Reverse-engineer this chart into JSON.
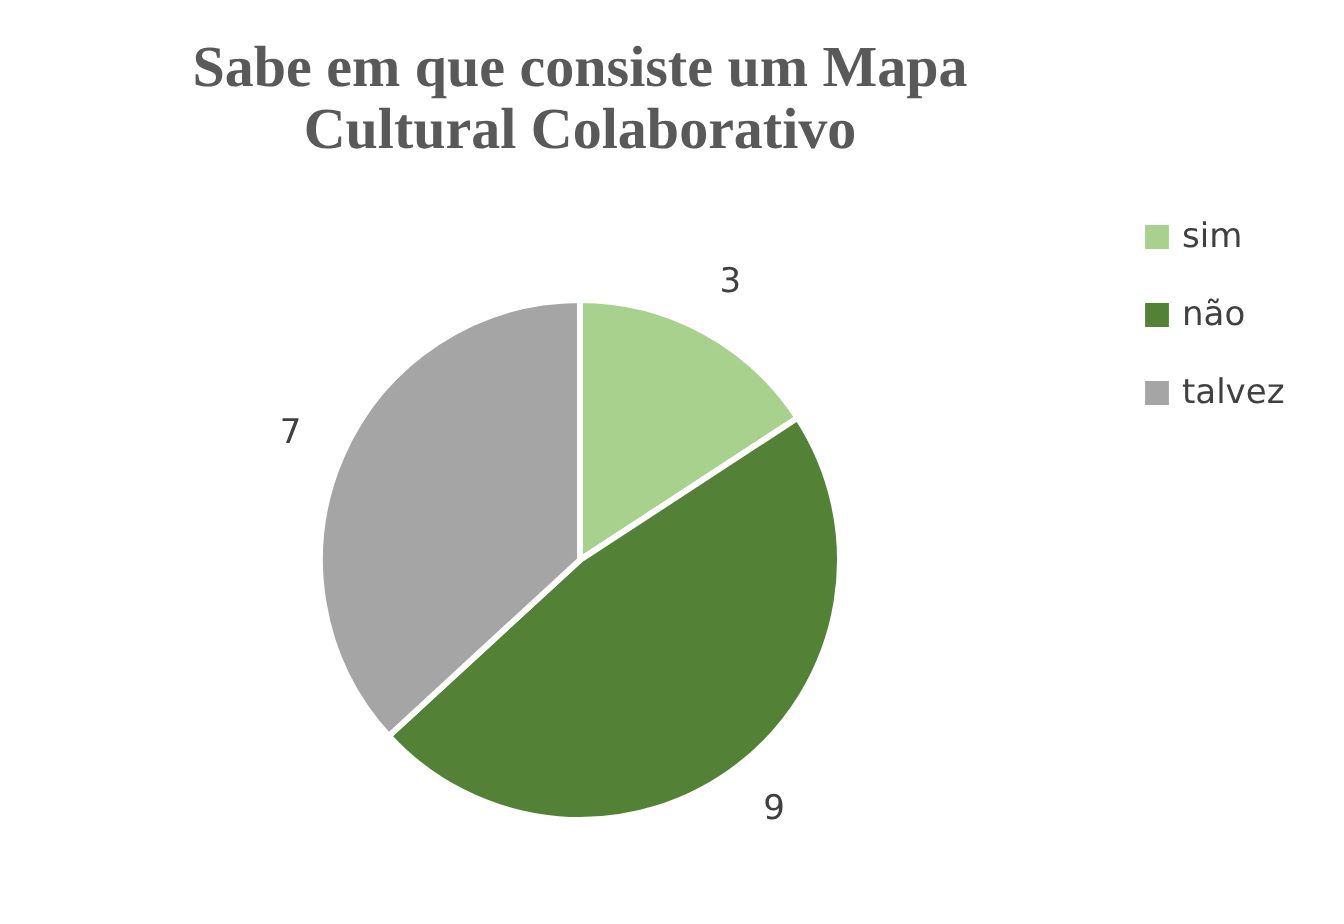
{
  "chart_data": {
    "type": "pie",
    "title": "Sabe em que consiste um Mapa Cultural Colaborativo",
    "categories": [
      "sim",
      "não",
      "talvez"
    ],
    "values": [
      3,
      9,
      7
    ],
    "colors": [
      "#a9d18e",
      "#538135",
      "#a5a5a5"
    ],
    "data_labels": true,
    "legend": "right"
  }
}
